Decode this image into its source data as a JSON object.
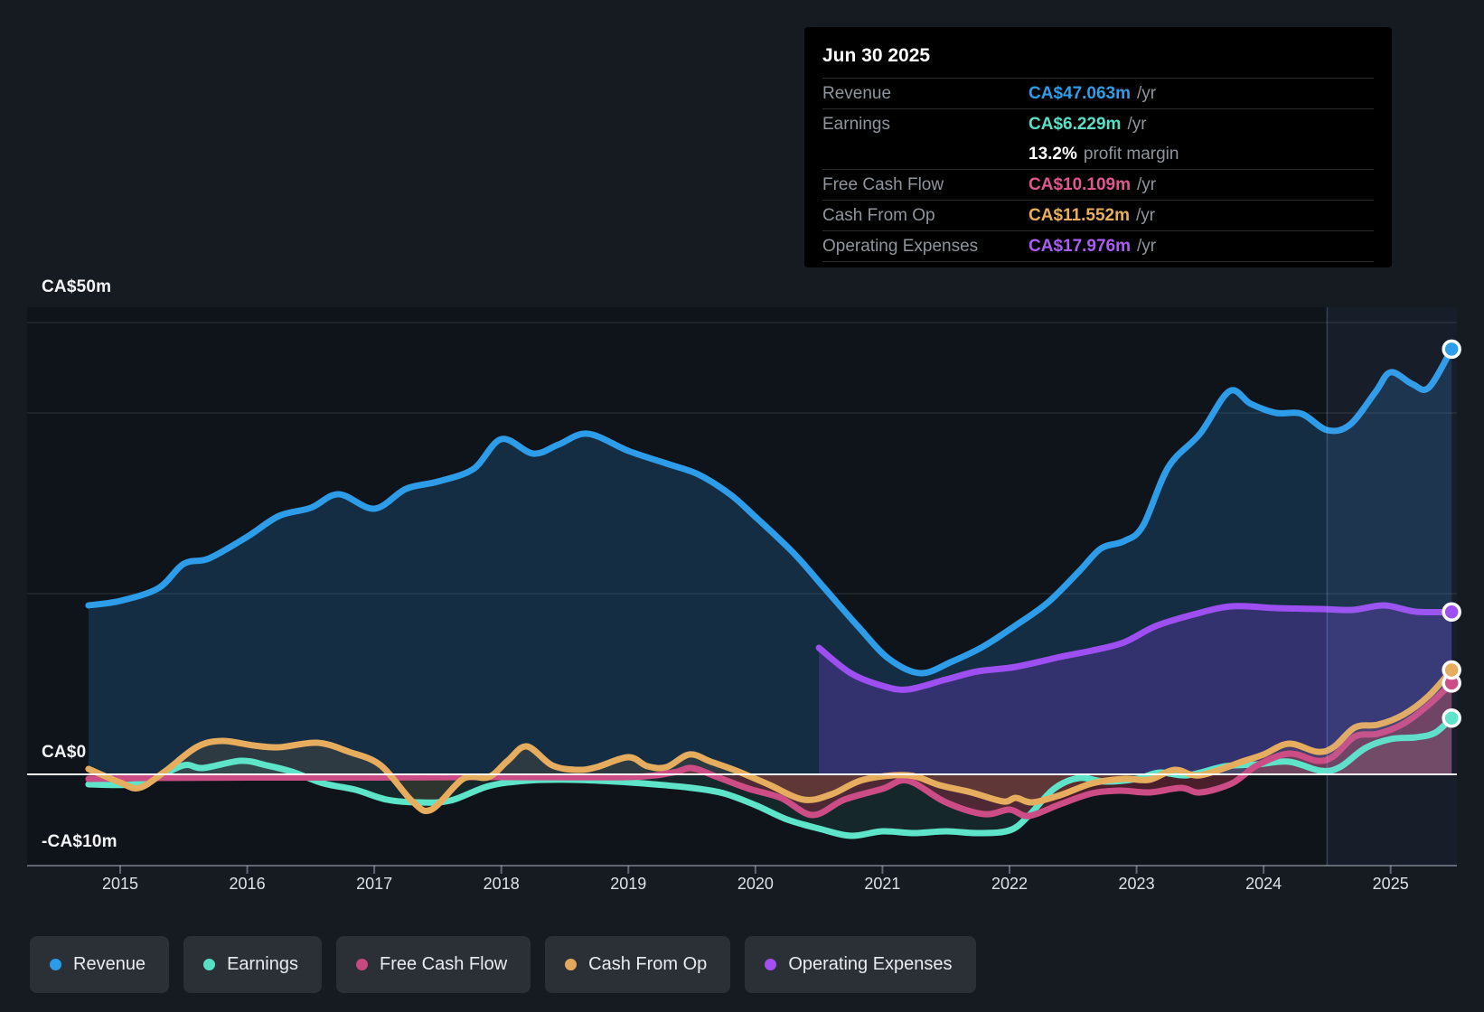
{
  "tooltip": {
    "date": "Jun 30 2025",
    "rows": [
      {
        "label": "Revenue",
        "value": "CA$47.063m",
        "suffix": "/yr",
        "color": "#2f9de8"
      },
      {
        "label": "Earnings",
        "value": "CA$6.229m",
        "suffix": "/yr",
        "color": "#58e1c6"
      },
      {
        "label": "Free Cash Flow",
        "value": "CA$10.109m",
        "suffix": "/yr",
        "color": "#e0578f"
      },
      {
        "label": "Cash From Op",
        "value": "CA$11.552m",
        "suffix": "/yr",
        "color": "#e8ae5c"
      },
      {
        "label": "Operating Expenses",
        "value": "CA$17.976m",
        "suffix": "/yr",
        "color": "#ab5cf7"
      }
    ],
    "profit_margin": {
      "value": "13.2%",
      "text": "profit margin"
    }
  },
  "legend": [
    {
      "label": "Revenue",
      "color": "#2b9ce8"
    },
    {
      "label": "Earnings",
      "color": "#57dfc4"
    },
    {
      "label": "Free Cash Flow",
      "color": "#c9497f"
    },
    {
      "label": "Cash From Op",
      "color": "#e2a85c"
    },
    {
      "label": "Operating Expenses",
      "color": "#a44ff2"
    }
  ],
  "colors": {
    "background": "#161b22",
    "plot_background": "#0f141b",
    "grid_line": "rgba(255,255,255,0.09)",
    "zero_line": "#ffffff",
    "axis_line": "rgba(190,200,215,0.45)",
    "tick_label": "#dde2e8",
    "highlight_band": "rgba(135,175,235,0.07)",
    "highlight_edge": "rgba(150,190,245,0.25)"
  },
  "chart_data": {
    "type": "line",
    "title": "Earnings and revenue history with analyst estimates cutoff Jun 30 2025",
    "x_ticks": [
      "2015",
      "2016",
      "2017",
      "2018",
      "2019",
      "2020",
      "2021",
      "2022",
      "2023",
      "2024",
      "2025"
    ],
    "x_range": [
      2014.55,
      2025.6
    ],
    "ylim": [
      -10,
      52
    ],
    "y_unit": "CA$m",
    "y_labels": [
      "CA$50m",
      "CA$0",
      "-CA$10m"
    ],
    "y_grid_values": [
      50,
      40,
      20
    ],
    "zero_value": 0,
    "y_axis_bottom": -10,
    "highlight_from_x": 2024.5,
    "legend_position": "bottom",
    "grid": true,
    "series": [
      {
        "name": "Revenue",
        "color": "#2e9de9",
        "fill": "#2b8fe0",
        "fill_opacity": 0.2,
        "line_width": 7,
        "data": [
          [
            2014.75,
            18.7
          ],
          [
            2015.0,
            19.2
          ],
          [
            2015.3,
            20.6
          ],
          [
            2015.5,
            23.3
          ],
          [
            2015.7,
            23.9
          ],
          [
            2016.0,
            26.3
          ],
          [
            2016.25,
            28.6
          ],
          [
            2016.5,
            29.5
          ],
          [
            2016.72,
            31.0
          ],
          [
            2017.0,
            29.4
          ],
          [
            2017.25,
            31.6
          ],
          [
            2017.5,
            32.4
          ],
          [
            2017.78,
            33.8
          ],
          [
            2018.0,
            37.1
          ],
          [
            2018.25,
            35.5
          ],
          [
            2018.45,
            36.5
          ],
          [
            2018.68,
            37.7
          ],
          [
            2019.0,
            35.8
          ],
          [
            2019.3,
            34.4
          ],
          [
            2019.55,
            33.2
          ],
          [
            2019.8,
            31.0
          ],
          [
            2020.0,
            28.5
          ],
          [
            2020.3,
            24.5
          ],
          [
            2020.55,
            20.5
          ],
          [
            2020.8,
            16.5
          ],
          [
            2021.05,
            12.8
          ],
          [
            2021.3,
            11.2
          ],
          [
            2021.55,
            12.5
          ],
          [
            2021.8,
            14.2
          ],
          [
            2022.05,
            16.5
          ],
          [
            2022.3,
            19.0
          ],
          [
            2022.55,
            22.5
          ],
          [
            2022.72,
            25.0
          ],
          [
            2022.9,
            25.8
          ],
          [
            2023.05,
            27.5
          ],
          [
            2023.25,
            34.0
          ],
          [
            2023.5,
            37.7
          ],
          [
            2023.73,
            42.4
          ],
          [
            2023.9,
            41.0
          ],
          [
            2024.1,
            40.0
          ],
          [
            2024.3,
            39.9
          ],
          [
            2024.5,
            38.1
          ],
          [
            2024.68,
            38.7
          ],
          [
            2024.88,
            42.3
          ],
          [
            2025.0,
            44.5
          ],
          [
            2025.17,
            43.2
          ],
          [
            2025.3,
            42.8
          ],
          [
            2025.48,
            47.063
          ]
        ]
      },
      {
        "name": "Operating Expenses",
        "color": "#9d4ff2",
        "fill": "#7b3fd6",
        "fill_opacity": 0.3,
        "line_width": 7,
        "data": [
          [
            2020.5,
            14.0
          ],
          [
            2020.75,
            11.2
          ],
          [
            2021.0,
            9.8
          ],
          [
            2021.2,
            9.4
          ],
          [
            2021.5,
            10.5
          ],
          [
            2021.75,
            11.4
          ],
          [
            2022.05,
            11.9
          ],
          [
            2022.4,
            13.0
          ],
          [
            2022.65,
            13.7
          ],
          [
            2022.9,
            14.6
          ],
          [
            2023.15,
            16.4
          ],
          [
            2023.45,
            17.7
          ],
          [
            2023.75,
            18.6
          ],
          [
            2024.1,
            18.4
          ],
          [
            2024.45,
            18.3
          ],
          [
            2024.7,
            18.2
          ],
          [
            2024.95,
            18.7
          ],
          [
            2025.2,
            18.0
          ],
          [
            2025.48,
            17.976
          ]
        ]
      },
      {
        "name": "Earnings",
        "color": "#5ee4c9",
        "fill": "#4fd9bd",
        "fill_opacity": 0.1,
        "line_width": 7,
        "data": [
          [
            2014.75,
            -1.1
          ],
          [
            2015.05,
            -1.15
          ],
          [
            2015.25,
            -0.6
          ],
          [
            2015.5,
            1.0
          ],
          [
            2015.65,
            0.7
          ],
          [
            2015.95,
            1.5
          ],
          [
            2016.15,
            1.0
          ],
          [
            2016.35,
            0.3
          ],
          [
            2016.6,
            -1.0
          ],
          [
            2016.85,
            -1.7
          ],
          [
            2017.1,
            -2.8
          ],
          [
            2017.35,
            -3.1
          ],
          [
            2017.6,
            -2.9
          ],
          [
            2017.9,
            -1.3
          ],
          [
            2018.2,
            -0.7
          ],
          [
            2018.55,
            -0.6
          ],
          [
            2018.9,
            -0.8
          ],
          [
            2019.2,
            -1.1
          ],
          [
            2019.5,
            -1.5
          ],
          [
            2019.75,
            -2.1
          ],
          [
            2020.0,
            -3.4
          ],
          [
            2020.25,
            -5.0
          ],
          [
            2020.5,
            -6.0
          ],
          [
            2020.75,
            -6.8
          ],
          [
            2021.0,
            -6.3
          ],
          [
            2021.25,
            -6.5
          ],
          [
            2021.5,
            -6.3
          ],
          [
            2021.75,
            -6.5
          ],
          [
            2022.0,
            -6.2
          ],
          [
            2022.15,
            -4.6
          ],
          [
            2022.35,
            -1.6
          ],
          [
            2022.55,
            -0.4
          ],
          [
            2022.75,
            -0.8
          ],
          [
            2023.0,
            -0.5
          ],
          [
            2023.18,
            0.2
          ],
          [
            2023.4,
            -0.1
          ],
          [
            2023.7,
            0.9
          ],
          [
            2023.95,
            1.1
          ],
          [
            2024.2,
            1.4
          ],
          [
            2024.45,
            0.4
          ],
          [
            2024.6,
            0.8
          ],
          [
            2024.8,
            2.9
          ],
          [
            2025.0,
            3.9
          ],
          [
            2025.2,
            4.1
          ],
          [
            2025.35,
            4.6
          ],
          [
            2025.48,
            6.229
          ]
        ]
      },
      {
        "name": "Free Cash Flow",
        "color": "#cc4d86",
        "fill": "#a52e46",
        "fill_opacity": 0.4,
        "line_width": 7,
        "data": [
          [
            2014.75,
            -0.5
          ],
          [
            2015.2,
            -0.4
          ],
          [
            2016.0,
            -0.35
          ],
          [
            2017.0,
            -0.35
          ],
          [
            2018.0,
            -0.3
          ],
          [
            2019.0,
            -0.3
          ],
          [
            2019.35,
            0.2
          ],
          [
            2019.5,
            0.7
          ],
          [
            2019.7,
            -0.3
          ],
          [
            2019.95,
            -1.6
          ],
          [
            2020.2,
            -2.6
          ],
          [
            2020.45,
            -4.5
          ],
          [
            2020.7,
            -2.8
          ],
          [
            2021.0,
            -1.6
          ],
          [
            2021.2,
            -0.7
          ],
          [
            2021.5,
            -3.1
          ],
          [
            2021.8,
            -4.4
          ],
          [
            2022.0,
            -3.9
          ],
          [
            2022.15,
            -4.6
          ],
          [
            2022.4,
            -3.3
          ],
          [
            2022.65,
            -2.1
          ],
          [
            2022.87,
            -1.8
          ],
          [
            2023.1,
            -2.0
          ],
          [
            2023.35,
            -1.5
          ],
          [
            2023.5,
            -2.0
          ],
          [
            2023.75,
            -1.0
          ],
          [
            2023.95,
            1.0
          ],
          [
            2024.2,
            2.3
          ],
          [
            2024.42,
            1.5
          ],
          [
            2024.55,
            2.0
          ],
          [
            2024.72,
            4.2
          ],
          [
            2024.9,
            4.5
          ],
          [
            2025.1,
            5.6
          ],
          [
            2025.3,
            7.7
          ],
          [
            2025.48,
            10.109
          ]
        ]
      },
      {
        "name": "Cash From Op",
        "color": "#e7ad5e",
        "fill": "#c98f4a",
        "fill_opacity": 0.14,
        "line_width": 7,
        "data": [
          [
            2014.75,
            0.6
          ],
          [
            2015.0,
            -0.9
          ],
          [
            2015.15,
            -1.5
          ],
          [
            2015.35,
            0.3
          ],
          [
            2015.6,
            3.0
          ],
          [
            2015.8,
            3.7
          ],
          [
            2016.05,
            3.2
          ],
          [
            2016.25,
            3.0
          ],
          [
            2016.55,
            3.5
          ],
          [
            2016.8,
            2.5
          ],
          [
            2017.05,
            1.0
          ],
          [
            2017.3,
            -3.0
          ],
          [
            2017.45,
            -3.9
          ],
          [
            2017.7,
            -0.5
          ],
          [
            2017.9,
            -0.3
          ],
          [
            2018.05,
            1.5
          ],
          [
            2018.2,
            3.1
          ],
          [
            2018.4,
            1.0
          ],
          [
            2018.6,
            0.5
          ],
          [
            2018.75,
            0.8
          ],
          [
            2019.0,
            1.9
          ],
          [
            2019.15,
            0.9
          ],
          [
            2019.3,
            0.8
          ],
          [
            2019.48,
            2.2
          ],
          [
            2019.65,
            1.4
          ],
          [
            2019.85,
            0.4
          ],
          [
            2020.1,
            -1.1
          ],
          [
            2020.38,
            -2.8
          ],
          [
            2020.6,
            -2.2
          ],
          [
            2020.85,
            -0.6
          ],
          [
            2021.2,
            -0.1
          ],
          [
            2021.45,
            -1.2
          ],
          [
            2021.7,
            -2.0
          ],
          [
            2021.95,
            -3.0
          ],
          [
            2022.05,
            -2.6
          ],
          [
            2022.18,
            -3.1
          ],
          [
            2022.4,
            -2.3
          ],
          [
            2022.65,
            -1.0
          ],
          [
            2022.9,
            -0.5
          ],
          [
            2023.1,
            -0.6
          ],
          [
            2023.3,
            0.5
          ],
          [
            2023.5,
            -0.1
          ],
          [
            2023.85,
            1.5
          ],
          [
            2024.0,
            2.2
          ],
          [
            2024.2,
            3.4
          ],
          [
            2024.42,
            2.5
          ],
          [
            2024.55,
            3.0
          ],
          [
            2024.72,
            5.2
          ],
          [
            2024.9,
            5.5
          ],
          [
            2025.1,
            6.6
          ],
          [
            2025.3,
            8.7
          ],
          [
            2025.48,
            11.552
          ]
        ]
      }
    ]
  }
}
